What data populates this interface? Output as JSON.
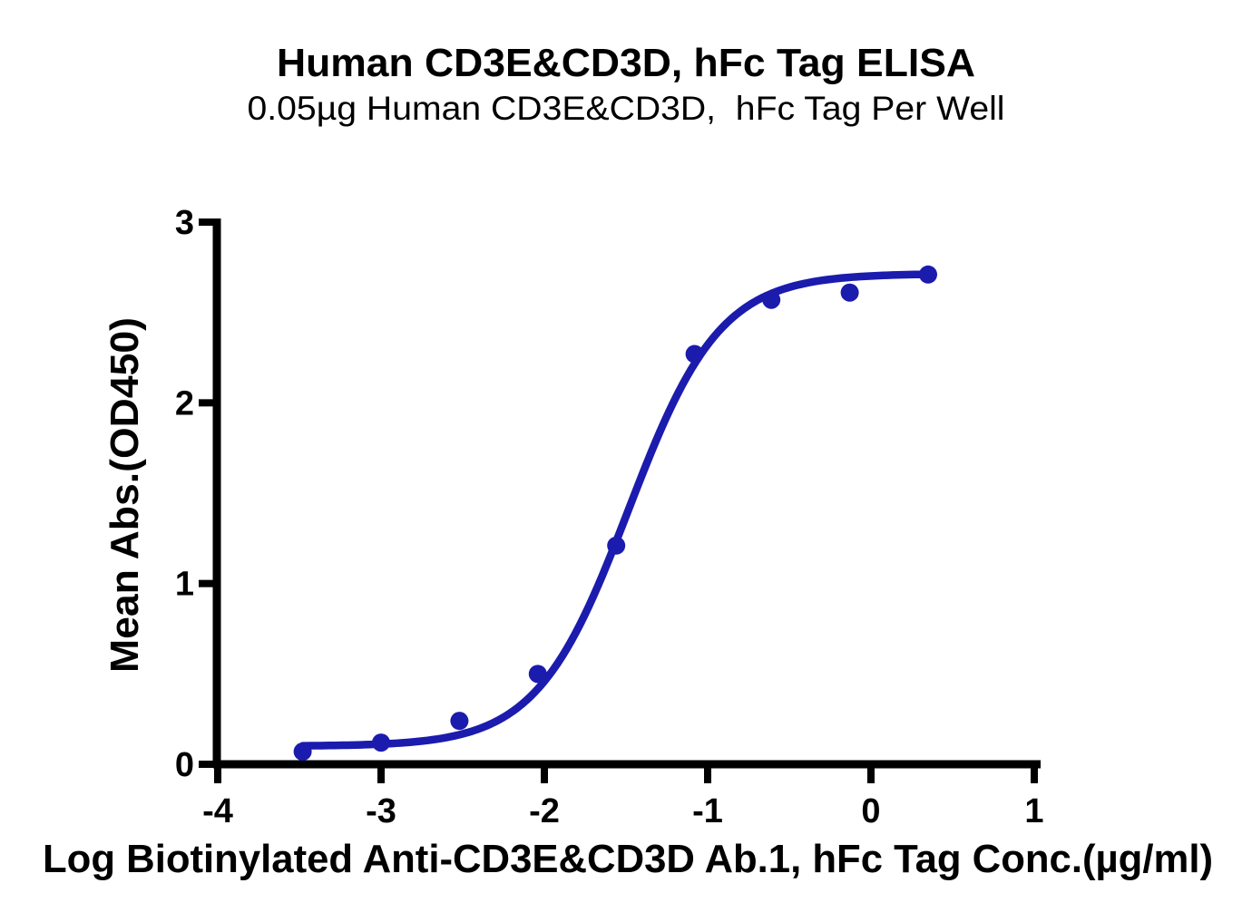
{
  "chart_data": {
    "type": "scatter",
    "title": "Human CD3E&CD3D, hFc Tag ELISA",
    "subtitle": "0.05µg Human CD3E&CD3D,  hFc Tag Per Well",
    "xlabel": "Log Biotinylated Anti-CD3E&CD3D Ab.1, hFc Tag Conc.(µg/ml)",
    "ylabel": "Mean Abs.(OD450)",
    "series": [
      {
        "name": "Biotinylated Anti-CD3E&CD3D Ab.1, hFc Tag",
        "x": [
          -3.48,
          -3.0,
          -2.52,
          -2.04,
          -1.56,
          -1.08,
          -0.61,
          -0.13,
          0.35
        ],
        "y": [
          0.07,
          0.12,
          0.24,
          0.5,
          1.21,
          2.27,
          2.57,
          2.61,
          2.71
        ]
      }
    ],
    "fit": {
      "model": "4PL-sigmoid",
      "bottom": 0.1,
      "top": 2.715,
      "log_ec50": -1.485,
      "hill": 1.55,
      "x_start": -3.48,
      "x_end": 0.35
    },
    "x_ticks": [
      -4,
      -3,
      -2,
      -1,
      0,
      1
    ],
    "y_ticks": [
      0,
      1,
      2,
      3
    ],
    "xlim": [
      -4,
      1
    ],
    "ylim": [
      0,
      3
    ],
    "grid": false,
    "legend": "none",
    "colors": {
      "curve": "#1b1bae",
      "points": "#1b1bae",
      "axis": "#000000",
      "text": "#000000",
      "background": "#ffffff"
    }
  }
}
